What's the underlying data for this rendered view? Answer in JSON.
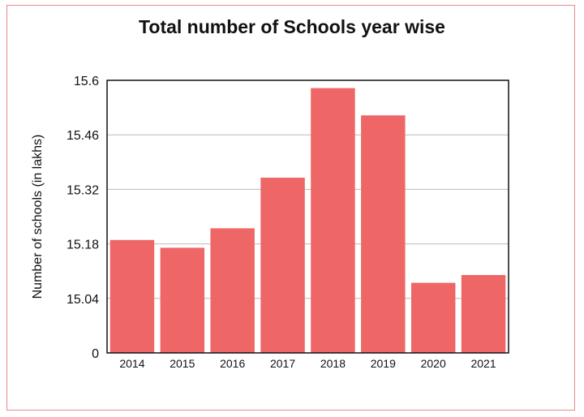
{
  "chart_data": {
    "type": "bar",
    "title": "Total number of Schools year wise",
    "xlabel": "",
    "ylabel": "Number of schools (in lakhs)",
    "categories": [
      "2014",
      "2015",
      "2016",
      "2017",
      "2018",
      "2019",
      "2020",
      "2021"
    ],
    "values": [
      15.19,
      15.17,
      15.22,
      15.35,
      15.58,
      15.51,
      15.08,
      15.1
    ],
    "ylim": [
      0,
      15.6
    ],
    "yticks": [
      "0",
      "15.04",
      "15.18",
      "15.32",
      "15.46",
      "15.6"
    ],
    "grid": true,
    "bar_color": "#ee6666",
    "grid_color": "#bbbbbb",
    "frame_color": "#e88a8a"
  }
}
